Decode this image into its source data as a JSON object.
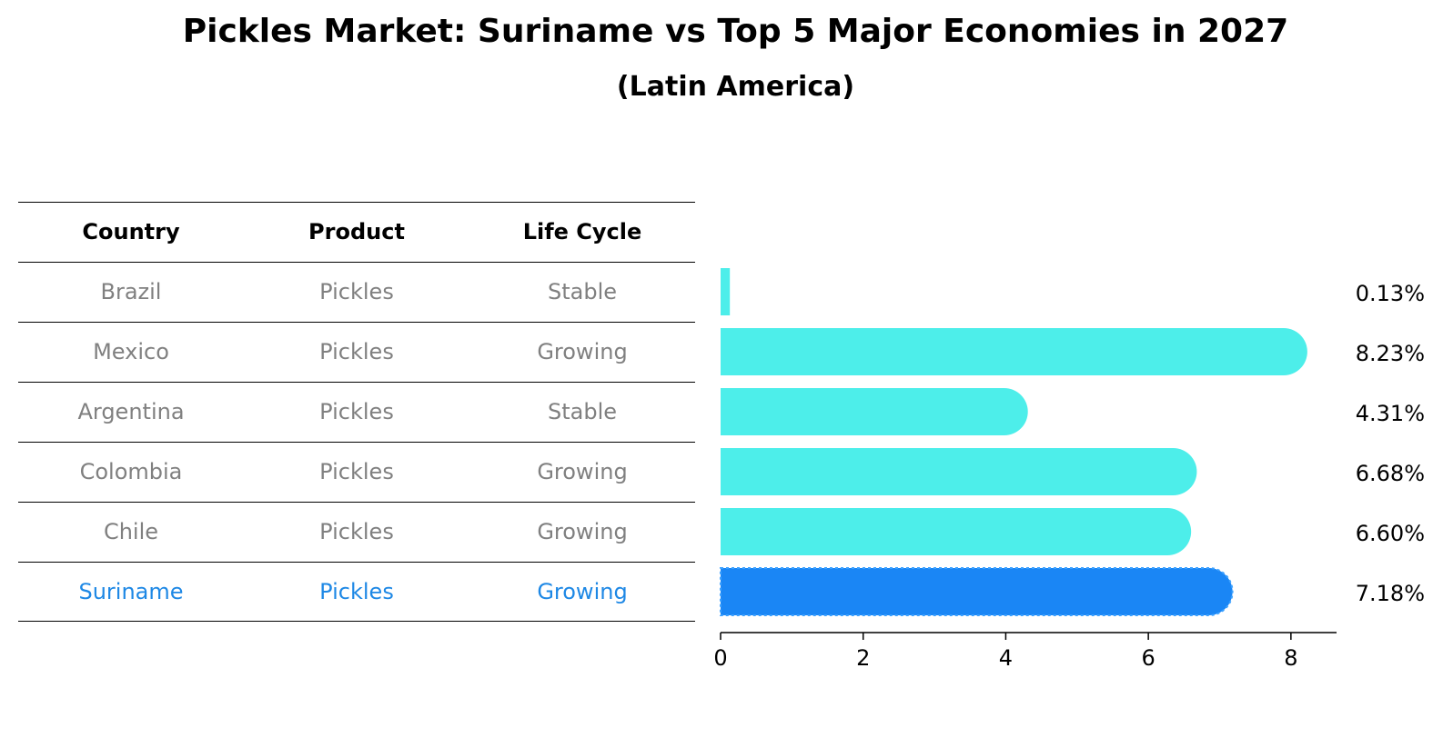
{
  "title": "Pickles Market: Suriname vs Top 5 Major Economies in 2027",
  "subtitle": "(Latin America)",
  "table": {
    "headers": [
      "Country",
      "Product",
      "Life Cycle"
    ],
    "rows": [
      [
        "Brazil",
        "Pickles",
        "Stable"
      ],
      [
        "Mexico",
        "Pickles",
        "Growing"
      ],
      [
        "Argentina",
        "Pickles",
        "Stable"
      ],
      [
        "Colombia",
        "Pickles",
        "Growing"
      ],
      [
        "Chile",
        "Pickles",
        "Growing"
      ],
      [
        "Suriname",
        "Pickles",
        "Growing"
      ]
    ],
    "highlight_row": 5
  },
  "chart_data": {
    "type": "bar",
    "orientation": "horizontal",
    "categories": [
      "Brazil",
      "Mexico",
      "Argentina",
      "Colombia",
      "Chile",
      "Suriname"
    ],
    "values": [
      0.13,
      8.23,
      4.31,
      6.68,
      6.6,
      7.18
    ],
    "value_labels": [
      "0.13%",
      "8.23%",
      "4.31%",
      "6.68%",
      "6.60%",
      "7.18%"
    ],
    "xlim": [
      0,
      8.64
    ],
    "xticks": [
      0,
      2,
      4,
      6,
      8
    ],
    "xlabel": "",
    "ylabel": "",
    "grid": false,
    "colors": {
      "default": "#4deeea",
      "highlight": "#1a86f5"
    },
    "highlight_index": 5
  }
}
